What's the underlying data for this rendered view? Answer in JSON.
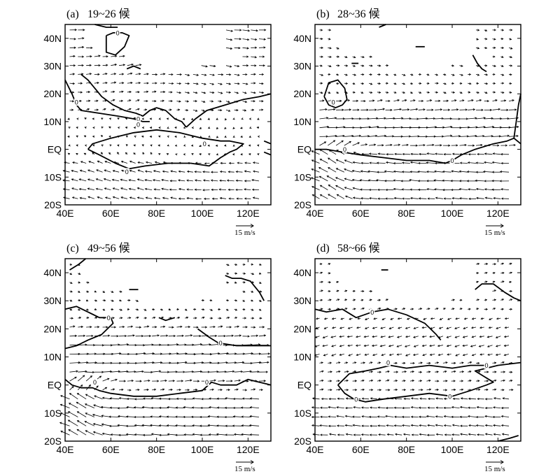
{
  "chart_data": [
    {
      "type": "vector-field",
      "panel_label": "(a)",
      "title": "19~26 候",
      "x_ticks": [
        "40E",
        "60E",
        "80E",
        "100E",
        "120E"
      ],
      "y_ticks": [
        "40N",
        "30N",
        "20N",
        "10N",
        "EQ",
        "10S",
        "20S"
      ],
      "xlim": [
        40,
        130
      ],
      "ylim": [
        -20,
        45
      ],
      "reference_vector": "15 m/s",
      "contour_level_label": "0",
      "contours": [
        [
          [
            40,
            25
          ],
          [
            43,
            20
          ],
          [
            45,
            16
          ],
          [
            47,
            14
          ],
          [
            55,
            13
          ],
          [
            63,
            12
          ],
          [
            70,
            11
          ],
          [
            74,
            10
          ],
          [
            77,
            10
          ]
        ],
        [
          [
            47,
            27
          ],
          [
            50,
            25
          ],
          [
            53,
            22
          ],
          [
            56,
            19
          ],
          [
            61,
            16
          ],
          [
            66,
            14
          ],
          [
            71,
            13
          ],
          [
            74,
            12
          ],
          [
            77,
            14
          ],
          [
            80,
            15
          ],
          [
            84,
            14
          ],
          [
            88,
            11
          ],
          [
            91,
            10
          ],
          [
            93,
            8
          ]
        ],
        [
          [
            93,
            8
          ],
          [
            97,
            11
          ],
          [
            102,
            14
          ],
          [
            110,
            16
          ],
          [
            118,
            18
          ],
          [
            125,
            19
          ],
          [
            130,
            20
          ]
        ],
        [
          [
            50,
            0
          ],
          [
            55,
            -2
          ],
          [
            62,
            -5
          ],
          [
            68,
            -7
          ],
          [
            75,
            -6
          ],
          [
            85,
            -5
          ],
          [
            95,
            -5
          ],
          [
            103,
            -6
          ],
          [
            108,
            -3
          ],
          [
            112,
            -1
          ],
          [
            115,
            0
          ],
          [
            118,
            2
          ],
          [
            112,
            3
          ],
          [
            108,
            3
          ],
          [
            100,
            4
          ],
          [
            90,
            6
          ],
          [
            80,
            7
          ],
          [
            70,
            6
          ],
          [
            60,
            4
          ],
          [
            52,
            2
          ],
          [
            50,
            0
          ]
        ],
        [
          [
            58,
            41
          ],
          [
            61,
            42
          ],
          [
            65,
            42
          ],
          [
            68,
            41
          ],
          [
            66,
            37
          ],
          [
            62,
            34
          ],
          [
            58,
            35
          ],
          [
            58,
            41
          ]
        ],
        [
          [
            53,
            45
          ],
          [
            58,
            44
          ],
          [
            63,
            44
          ]
        ],
        [
          [
            127,
            3
          ],
          [
            130,
            2
          ]
        ],
        [
          [
            127,
            -1
          ],
          [
            130,
            -2
          ]
        ],
        [
          [
            67,
            29
          ],
          [
            70,
            30
          ],
          [
            73,
            29
          ]
        ]
      ],
      "contour_labels": [
        [
          45,
          17
        ],
        [
          72,
          11
        ],
        [
          72,
          9
        ],
        [
          101,
          2
        ],
        [
          67,
          -8
        ],
        [
          63,
          42
        ]
      ],
      "vector_regime": "pre-monsoon"
    },
    {
      "type": "vector-field",
      "panel_label": "(b)",
      "title": "28~36 候",
      "x_ticks": [
        "40E",
        "60E",
        "80E",
        "100E",
        "120E"
      ],
      "y_ticks": [
        "40N",
        "30N",
        "20N",
        "10N",
        "EQ",
        "10S",
        "20S"
      ],
      "xlim": [
        40,
        130
      ],
      "ylim": [
        -20,
        45
      ],
      "reference_vector": "15 m/s",
      "contour_level_label": "0",
      "contours": [
        [
          [
            40,
            0
          ],
          [
            45,
            0
          ],
          [
            52,
            -1
          ],
          [
            60,
            -2
          ],
          [
            70,
            -3
          ],
          [
            80,
            -4
          ],
          [
            90,
            -4
          ],
          [
            97,
            -5
          ],
          [
            100,
            -4
          ],
          [
            104,
            -2
          ],
          [
            110,
            0
          ],
          [
            118,
            2
          ],
          [
            124,
            3
          ],
          [
            127,
            4
          ],
          [
            130,
            2
          ]
        ],
        [
          [
            127,
            4
          ],
          [
            128,
            10
          ],
          [
            129,
            16
          ],
          [
            130,
            20
          ]
        ],
        [
          [
            44,
            19
          ],
          [
            46,
            24
          ],
          [
            50,
            25
          ],
          [
            53,
            22
          ],
          [
            54,
            18
          ],
          [
            52,
            16
          ],
          [
            49,
            15
          ],
          [
            46,
            16
          ],
          [
            44,
            19
          ]
        ],
        [
          [
            68,
            44
          ],
          [
            71,
            45
          ]
        ],
        [
          [
            109,
            34
          ],
          [
            111,
            31
          ],
          [
            113,
            29
          ],
          [
            115,
            28
          ]
        ],
        [
          [
            84,
            37
          ],
          [
            88,
            37
          ]
        ],
        [
          [
            56,
            31
          ],
          [
            59,
            31
          ]
        ]
      ],
      "contour_labels": [
        [
          53,
          0
        ],
        [
          100,
          -4
        ],
        [
          48,
          17
        ]
      ],
      "vector_regime": "monsoon-onset"
    },
    {
      "type": "vector-field",
      "panel_label": "(c)",
      "title": "49~56 候",
      "x_ticks": [
        "40E",
        "60E",
        "80E",
        "100E",
        "120E"
      ],
      "y_ticks": [
        "40N",
        "30N",
        "20N",
        "10N",
        "EQ",
        "10S",
        "20S"
      ],
      "xlim": [
        40,
        130
      ],
      "ylim": [
        -20,
        45
      ],
      "reference_vector": "15 m/s",
      "contour_level_label": "0",
      "contours": [
        [
          [
            42,
            41
          ],
          [
            46,
            43
          ],
          [
            49,
            45
          ]
        ],
        [
          [
            40,
            27
          ],
          [
            45,
            28
          ],
          [
            50,
            26
          ],
          [
            55,
            24
          ],
          [
            60,
            24
          ],
          [
            61,
            22
          ],
          [
            56,
            18
          ],
          [
            50,
            16
          ],
          [
            45,
            14
          ],
          [
            40,
            13
          ]
        ],
        [
          [
            40,
            2
          ],
          [
            43,
            0
          ],
          [
            47,
            -1
          ],
          [
            52,
            -1
          ],
          [
            55,
            -2
          ],
          [
            60,
            -3
          ],
          [
            70,
            -4
          ],
          [
            80,
            -4
          ],
          [
            90,
            -3
          ],
          [
            100,
            -2
          ],
          [
            104,
            1
          ],
          [
            108,
            0
          ],
          [
            115,
            0
          ],
          [
            120,
            2
          ],
          [
            125,
            1
          ],
          [
            130,
            0
          ]
        ],
        [
          [
            98,
            20
          ],
          [
            103,
            17
          ],
          [
            107,
            15
          ],
          [
            115,
            14
          ],
          [
            125,
            14
          ],
          [
            130,
            14
          ]
        ],
        [
          [
            110,
            39
          ],
          [
            113,
            38
          ],
          [
            117,
            38
          ],
          [
            121,
            37
          ],
          [
            125,
            33
          ],
          [
            127,
            30
          ]
        ],
        [
          [
            68,
            34
          ],
          [
            72,
            34
          ]
        ],
        [
          [
            81,
            24
          ],
          [
            84,
            23
          ],
          [
            88,
            24
          ]
        ]
      ],
      "contour_labels": [
        [
          59,
          24
        ],
        [
          53,
          1
        ],
        [
          102,
          1
        ],
        [
          108,
          15
        ]
      ],
      "vector_regime": "mature-monsoon"
    },
    {
      "type": "vector-field",
      "panel_label": "(d)",
      "title": "58~66 候",
      "x_ticks": [
        "40E",
        "60E",
        "80E",
        "100E",
        "120E"
      ],
      "y_ticks": [
        "40N",
        "30N",
        "20N",
        "10N",
        "EQ",
        "10S",
        "20S"
      ],
      "xlim": [
        40,
        130
      ],
      "ylim": [
        -20,
        45
      ],
      "reference_vector": "15 m/s",
      "contour_level_label": "0",
      "contours": [
        [
          [
            40,
            27
          ],
          [
            45,
            26
          ],
          [
            52,
            27
          ],
          [
            58,
            24
          ],
          [
            65,
            26
          ],
          [
            72,
            27
          ],
          [
            80,
            25
          ],
          [
            88,
            22
          ],
          [
            93,
            18
          ],
          [
            95,
            16
          ]
        ],
        [
          [
            50,
            0
          ],
          [
            53,
            -3
          ],
          [
            57,
            -5
          ],
          [
            62,
            -6
          ],
          [
            70,
            -5
          ],
          [
            80,
            -4
          ],
          [
            90,
            -3
          ],
          [
            100,
            -4
          ],
          [
            108,
            -2
          ],
          [
            115,
            0
          ],
          [
            118,
            1
          ],
          [
            112,
            4
          ],
          [
            110,
            5
          ],
          [
            115,
            6
          ],
          [
            120,
            7
          ],
          [
            130,
            8
          ]
        ],
        [
          [
            50,
            0
          ],
          [
            55,
            4
          ],
          [
            62,
            5
          ],
          [
            68,
            6
          ],
          [
            73,
            7
          ],
          [
            80,
            6
          ],
          [
            90,
            7
          ],
          [
            100,
            6
          ],
          [
            108,
            7
          ],
          [
            115,
            7
          ]
        ],
        [
          [
            110,
            34
          ],
          [
            113,
            36
          ],
          [
            118,
            36
          ],
          [
            123,
            33
          ],
          [
            127,
            31
          ],
          [
            130,
            30
          ]
        ],
        [
          [
            69,
            41
          ],
          [
            72,
            41
          ]
        ],
        [
          [
            120,
            -20
          ],
          [
            125,
            -19
          ],
          [
            129,
            -18
          ]
        ]
      ],
      "contour_labels": [
        [
          65,
          26
        ],
        [
          72,
          8
        ],
        [
          99,
          -4
        ],
        [
          115,
          7
        ],
        [
          58,
          -5
        ]
      ],
      "vector_regime": "withdrawal"
    }
  ]
}
